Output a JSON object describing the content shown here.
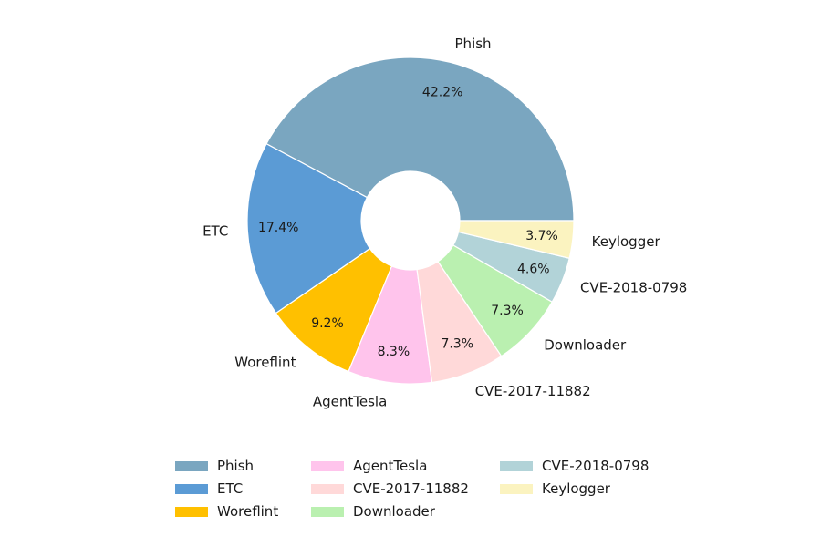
{
  "chart_data": {
    "type": "pie",
    "donut": true,
    "start_angle_deg": 0,
    "direction": "counterclockwise",
    "legend_position": "bottom",
    "legend_columns": 3,
    "slices": [
      {
        "label": "Phish",
        "percent_label": "42.2%",
        "value": 42.2,
        "color": "#7aa6c0"
      },
      {
        "label": "ETC",
        "percent_label": "17.4%",
        "value": 17.4,
        "color": "#5b9bd5"
      },
      {
        "label": "Woreflint",
        "percent_label": "9.2%",
        "value": 9.2,
        "color": "#ffc000"
      },
      {
        "label": "AgentTesla",
        "percent_label": "8.3%",
        "value": 8.3,
        "color": "#ffc4ec"
      },
      {
        "label": "CVE-2017-11882",
        "percent_label": "7.3%",
        "value": 7.3,
        "color": "#ffd9d9"
      },
      {
        "label": "Downloader",
        "percent_label": "7.3%",
        "value": 7.3,
        "color": "#baf0b0"
      },
      {
        "label": "CVE-2018-0798",
        "percent_label": "4.6%",
        "value": 4.6,
        "color": "#b2d3d8"
      },
      {
        "label": "Keylogger",
        "percent_label": "3.7%",
        "value": 3.7,
        "color": "#fbf3c0"
      }
    ]
  }
}
